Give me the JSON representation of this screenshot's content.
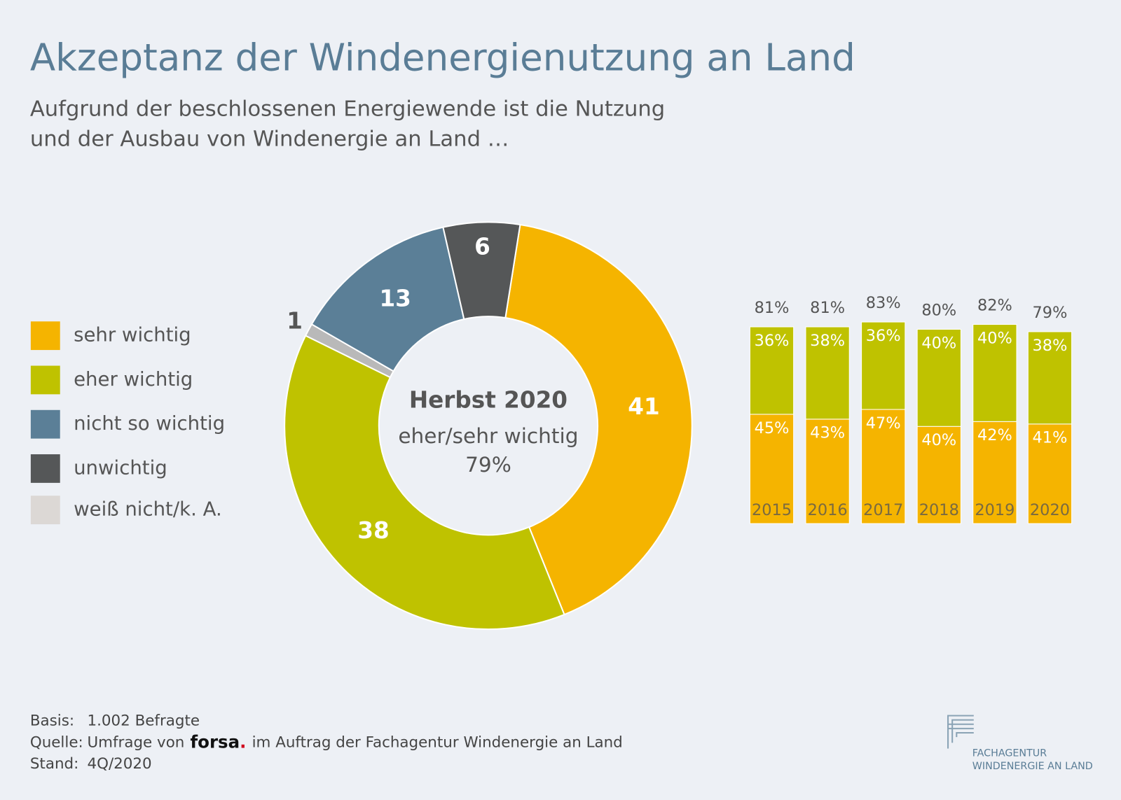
{
  "header": {
    "title": "Akzeptanz der Windenergienutzung an Land",
    "subtitle": [
      "Aufgrund der beschlossenen Energiewende ist die Nutzung",
      "und der Ausbau von Windenergie an Land …"
    ]
  },
  "chart_data": [
    {
      "type": "pie",
      "categories": [
        "sehr wichtig",
        "eher wichtig",
        "weiß nicht/k. A.",
        "nicht so wichtig",
        "unwichtig"
      ],
      "values": [
        41,
        38,
        1,
        13,
        6
      ],
      "colors": [
        "#f5b400",
        "#bfc200",
        "#b9b9b9",
        "#5b7f97",
        "#555758"
      ],
      "legend_colors": [
        "#f5b400",
        "#bfc200",
        "#dcd8d5",
        "#5b7f97",
        "#555758"
      ],
      "center_title": "Herbst 2020",
      "center_text": [
        "eher/sehr wichtig",
        "79%"
      ]
    },
    {
      "type": "bar",
      "categories": [
        "2015",
        "2016",
        "2017",
        "2018",
        "2019",
        "2020"
      ],
      "series": [
        {
          "color": "#f5b400",
          "values": [
            45,
            43,
            47,
            40,
            42,
            41
          ],
          "value_labels": [
            "45%",
            "43%",
            "47%",
            "40%",
            "42%",
            "41%"
          ]
        },
        {
          "color": "#bfc200",
          "values": [
            36,
            38,
            36,
            40,
            40,
            38
          ],
          "value_labels": [
            "36%",
            "38%",
            "36%",
            "40%",
            "40%",
            "38%"
          ]
        }
      ],
      "totals": [
        81,
        81,
        83,
        80,
        82,
        79
      ],
      "total_labels": [
        "81%",
        "81%",
        "83%",
        "80%",
        "82%",
        "79%"
      ]
    }
  ],
  "footer": {
    "rows": [
      [
        "Basis:",
        "1.002 Befragte"
      ],
      [
        "Quelle:",
        "Umfrage von"
      ],
      [
        "Stand:",
        "4Q/2020"
      ]
    ],
    "brand": "forsa",
    "brand_dot": ".",
    "source_rest": "im Auftrag der Fachagentur Windenergie an Land"
  },
  "logo": {
    "lines": [
      "FACHAGENTUR",
      "WINDENERGIE AN LAND"
    ]
  }
}
